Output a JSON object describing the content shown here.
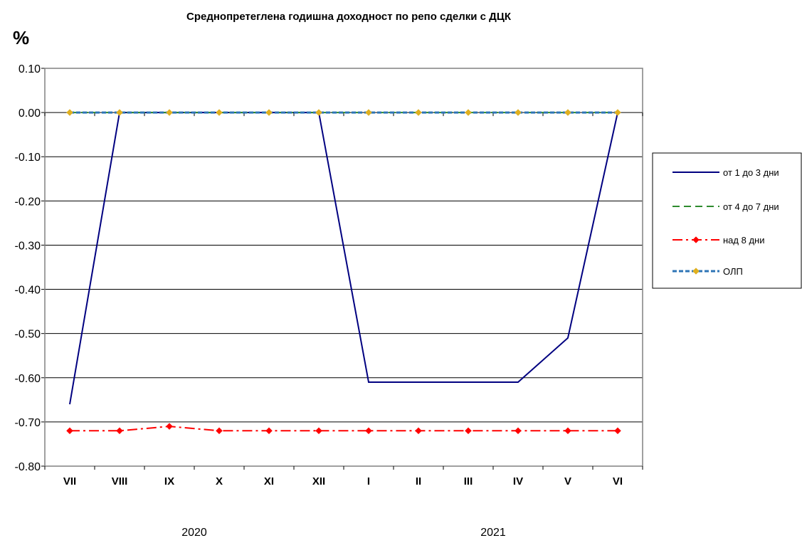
{
  "chart_data": {
    "type": "line",
    "title": "Среднопретеглена годишна доходност по репо сделки с ДЦК",
    "ylabel": "%",
    "xlabel": "",
    "categories": [
      "VII",
      "VIII",
      "IX",
      "X",
      "XI",
      "XII",
      "I",
      "II",
      "III",
      "IV",
      "V",
      "VI"
    ],
    "year_labels": [
      "2020",
      "2021"
    ],
    "ylim": [
      -0.8,
      0.1
    ],
    "yticks": [
      "0.10",
      "0.00",
      "-0.10",
      "-0.20",
      "-0.30",
      "-0.40",
      "-0.50",
      "-0.60",
      "-0.70",
      "-0.80"
    ],
    "grid": true,
    "legend_position": "right",
    "series": [
      {
        "name": "от 1 до 3 дни",
        "color": "#000080",
        "dash": "solid",
        "marker": "none",
        "values": [
          -0.66,
          0.0,
          0.0,
          0.0,
          0.0,
          0.0,
          -0.61,
          -0.61,
          -0.61,
          -0.61,
          -0.51,
          0.0
        ]
      },
      {
        "name": "от 4 до 7 дни",
        "color": "#2E8B2E",
        "dash": "dash",
        "marker": "none",
        "values": [
          0.0,
          0.0,
          0.0,
          0.0,
          0.0,
          0.0,
          0.0,
          0.0,
          0.0,
          0.0,
          0.0,
          0.0
        ]
      },
      {
        "name": "над 8 дни",
        "color": "#FF0000",
        "dash": "dashdot",
        "marker": "diamond",
        "values": [
          -0.72,
          -0.72,
          -0.71,
          -0.72,
          -0.72,
          -0.72,
          -0.72,
          -0.72,
          -0.72,
          -0.72,
          -0.72,
          -0.72
        ]
      },
      {
        "name": "ОЛП",
        "color": "#2E75B6",
        "dash": "shortdash",
        "marker": "diamond",
        "marker_color": "#E0B020",
        "values": [
          0.0,
          0.0,
          0.0,
          0.0,
          0.0,
          0.0,
          0.0,
          0.0,
          0.0,
          0.0,
          0.0,
          0.0
        ]
      }
    ]
  }
}
